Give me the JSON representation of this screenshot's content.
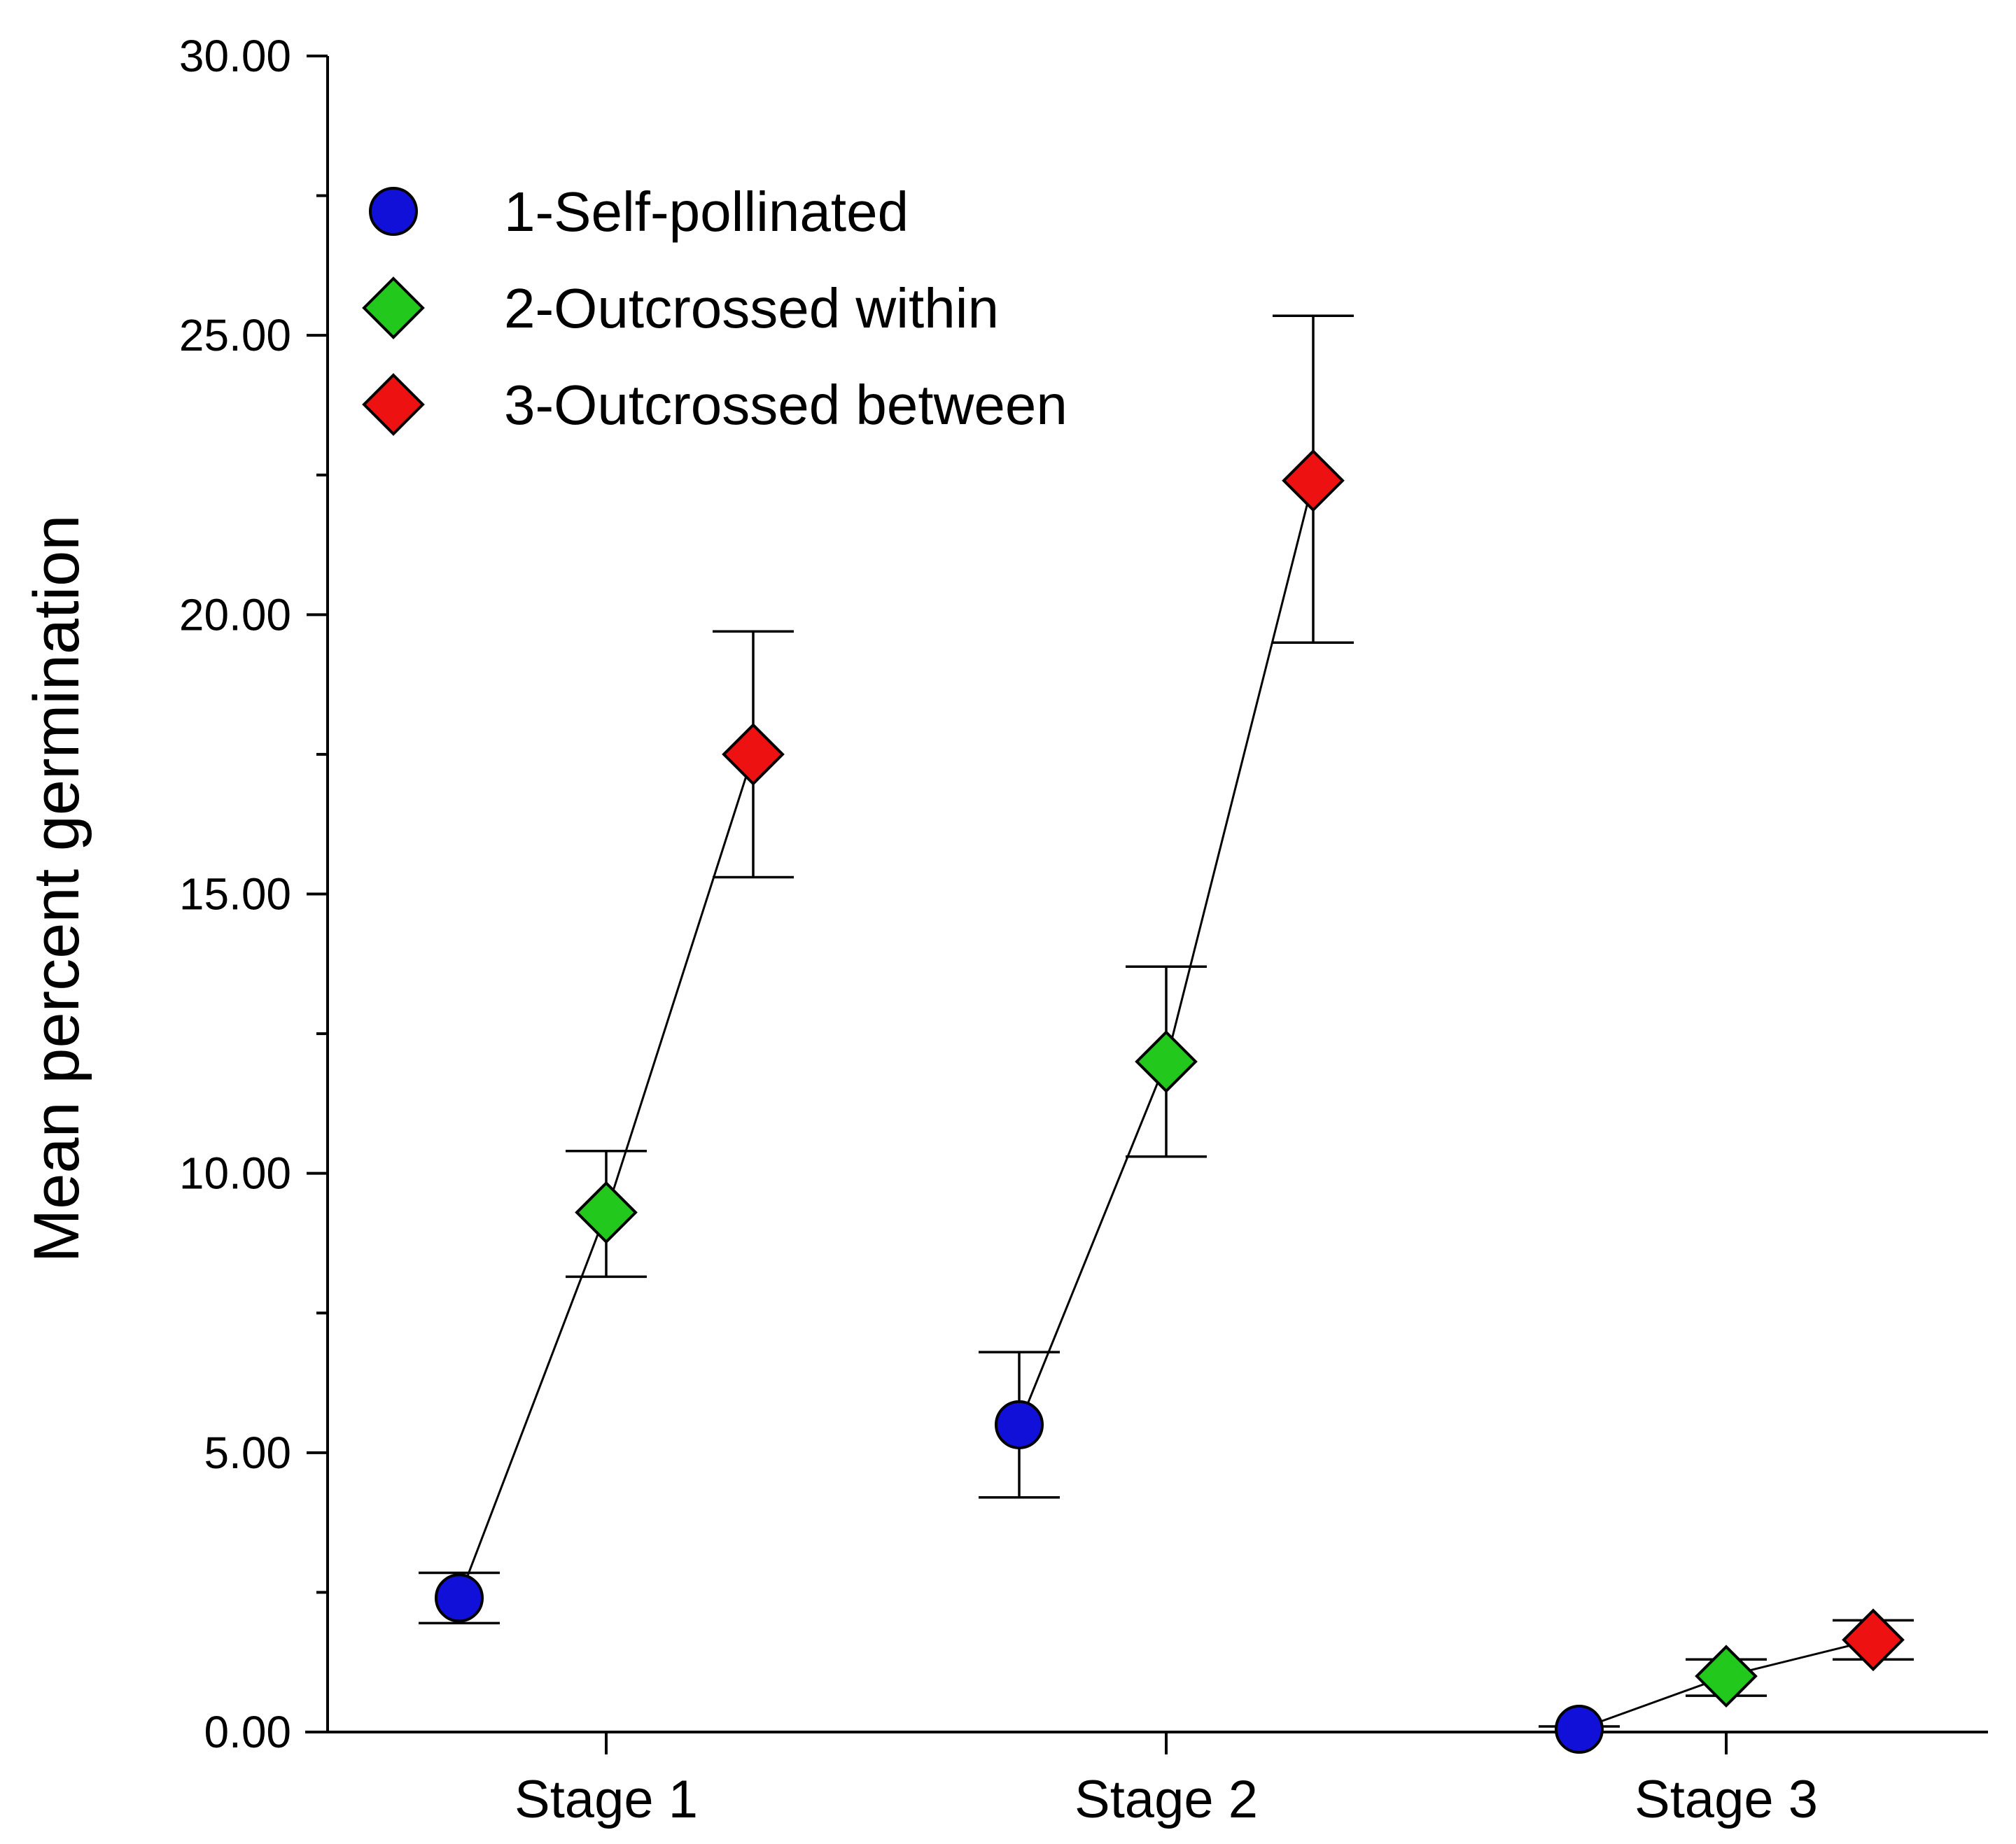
{
  "chart_data": {
    "type": "scatter",
    "title": "",
    "xlabel": "",
    "ylabel": "Mean percent germination",
    "ylim": [
      0,
      30
    ],
    "yticks": [
      "0.00",
      "5.00",
      "10.00",
      "15.00",
      "20.00",
      "25.00",
      "30.00"
    ],
    "categories": [
      "Stage 1",
      "Stage 2",
      "Stage 3"
    ],
    "legend_position": "top-left",
    "series": [
      {
        "name": "1-Self-pollinated",
        "marker": "circle",
        "color": "#1010d8",
        "values": [
          2.4,
          5.5,
          0.05
        ],
        "err_low": [
          1.95,
          4.2,
          0.0
        ],
        "err_high": [
          2.85,
          6.8,
          0.1
        ]
      },
      {
        "name": "2-Outcrossed within",
        "marker": "diamond",
        "color": "#22c81c",
        "values": [
          9.3,
          12.0,
          1.0
        ],
        "err_low": [
          8.15,
          10.3,
          0.65
        ],
        "err_high": [
          10.4,
          13.7,
          1.3
        ]
      },
      {
        "name": "3-Outcrossed between",
        "marker": "diamond",
        "color": "#ee1111",
        "values": [
          17.5,
          22.4,
          1.65
        ],
        "err_low": [
          15.3,
          19.5,
          1.3
        ],
        "err_high": [
          19.7,
          25.35,
          2.0
        ]
      }
    ]
  }
}
